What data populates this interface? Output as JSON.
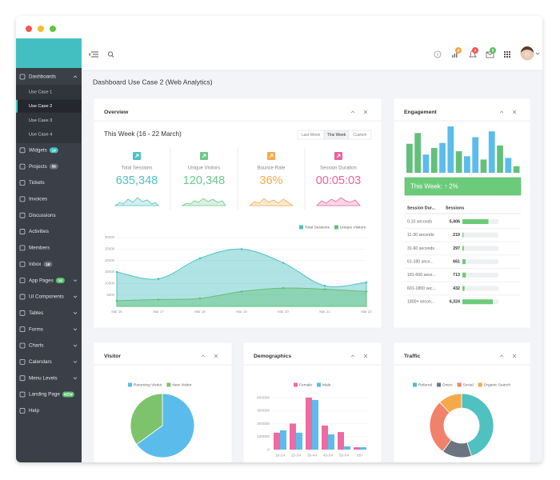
{
  "sidebar": {
    "items": [
      {
        "label": "Dashboards",
        "expandable": true,
        "children": [
          "Use Case 1",
          "Use Case 2",
          "Use Case 3",
          "Use Case 4"
        ],
        "active_child": 1
      },
      {
        "label": "Widgets",
        "badge": 14,
        "badge_color": "#44bfc1"
      },
      {
        "label": "Projects",
        "badge": 56,
        "badge_color": "#6b717a"
      },
      {
        "label": "Tickets"
      },
      {
        "label": "Invoices"
      },
      {
        "label": "Discussions"
      },
      {
        "label": "Activities"
      },
      {
        "label": "Members"
      },
      {
        "label": "Inbox",
        "badge": 18,
        "badge_color": "#6b717a"
      },
      {
        "label": "App Pages",
        "badge": 14,
        "badge_color": "#5cc06c",
        "expandable": true
      },
      {
        "label": "UI Components",
        "expandable": true
      },
      {
        "label": "Tables",
        "expandable": true
      },
      {
        "label": "Forms",
        "expandable": true
      },
      {
        "label": "Charts",
        "expandable": true
      },
      {
        "label": "Calendars",
        "expandable": true
      },
      {
        "label": "Menu Levels",
        "expandable": true
      },
      {
        "label": "Landing Page",
        "badge": "NEW",
        "badge_color": "#5cc06c"
      },
      {
        "label": "Help"
      }
    ]
  },
  "topbar": {
    "notification_badges": [
      {
        "count": 4,
        "color": "#f6a94b"
      },
      {
        "count": 3,
        "color": "#ef5350"
      },
      {
        "count": 5,
        "color": "#5cc06c"
      }
    ]
  },
  "page_title": "Dashboard Use Case 2 (Web Analytics)",
  "overview": {
    "period": "This Week (16 - 22 March)",
    "ranges": [
      "Last Week",
      "This Week",
      "Custom"
    ],
    "active_range": 1,
    "stats": [
      {
        "label": "Total Sessions",
        "value": "635,348",
        "color": "#4fc1c0"
      },
      {
        "label": "Unique Visitors",
        "value": "120,348",
        "color": "#6cc98a"
      },
      {
        "label": "Bounce Rate",
        "value": "36%",
        "color": "#f6a94b"
      },
      {
        "label": "Session Duration",
        "value": "00:05:03",
        "color": "#ec5f9b"
      }
    ]
  },
  "engagement": {
    "summary": "This Week: ↑ 2%",
    "table": {
      "headers": [
        "Session Dur...",
        "Sessions"
      ],
      "durations": [
        "0-10 seconds",
        "11-30 seconds",
        "31-60 seconds",
        "61-180 seco...",
        "181-600 seco...",
        "601-1800 sec...",
        "1800+ secon..."
      ],
      "values": [
        5406,
        219,
        297,
        661,
        713,
        432,
        6324
      ],
      "value_labels": [
        "5,406",
        "219",
        "297",
        "661",
        "713",
        "432",
        "6,324"
      ]
    }
  },
  "chart_data": [
    {
      "type": "area",
      "title": "Overview",
      "categories": [
        "Mar 16",
        "Mar 17",
        "Mar 18",
        "Mar 19",
        "Mar 20",
        "Mar 21",
        "Mar 22"
      ],
      "series": [
        {
          "name": "Total Sessions",
          "color": "#4fc1c0",
          "values": [
            15000,
            12000,
            21000,
            25000,
            19000,
            9000,
            10500
          ]
        },
        {
          "name": "Unique Visitors",
          "color": "#62c07a",
          "values": [
            2500,
            3000,
            3500,
            6500,
            8000,
            7500,
            6500
          ]
        }
      ],
      "ylim": [
        0,
        30000
      ],
      "yticks": [
        5000,
        10000,
        15000,
        20000,
        25000,
        30000
      ],
      "grid": true,
      "legend": "top-right"
    },
    {
      "type": "bar",
      "title": "Engagement",
      "values": [
        35,
        48,
        22,
        30,
        36,
        56,
        26,
        20,
        43,
        16,
        50,
        33,
        18,
        8
      ],
      "colors": [
        "#62c07a",
        "#62c07a",
        "#5bbcec",
        "#62c07a",
        "#5bbcec",
        "#5bbcec",
        "#62c07a",
        "#5bbcec",
        "#5bbcec",
        "#62c07a",
        "#5bbcec",
        "#62c07a",
        "#5bbcec",
        "#62c07a"
      ]
    },
    {
      "type": "pie",
      "title": "Visitor",
      "categories": [
        "Returning Visitor",
        "New Visitor"
      ],
      "values": [
        65,
        35
      ],
      "colors": [
        "#5bbcec",
        "#7dc36b"
      ],
      "legend": "top"
    },
    {
      "type": "grouped-bar",
      "title": "Demographics",
      "categories": [
        "18-24",
        "25-34",
        "35-44",
        "45-54",
        "55-64",
        "65+"
      ],
      "series": [
        {
          "name": "Female",
          "color": "#ef6aa0",
          "values": [
            130000,
            200000,
            400000,
            185000,
            135000,
            18000
          ]
        },
        {
          "name": "Male",
          "color": "#5bbcec",
          "values": [
            148000,
            130000,
            382000,
            117000,
            25000,
            18000
          ]
        }
      ],
      "ylim": [
        0,
        400000
      ],
      "yticks": [
        0,
        100000,
        200000,
        300000,
        400000
      ],
      "legend": "top"
    },
    {
      "type": "donut",
      "title": "Traffic",
      "categories": [
        "Referral",
        "Direct",
        "Social",
        "Organic Search"
      ],
      "values": [
        45,
        15,
        28,
        12
      ],
      "colors": [
        "#4fc1c0",
        "#6b7580",
        "#f0826c",
        "#f6a94b"
      ],
      "legend": "top"
    }
  ]
}
